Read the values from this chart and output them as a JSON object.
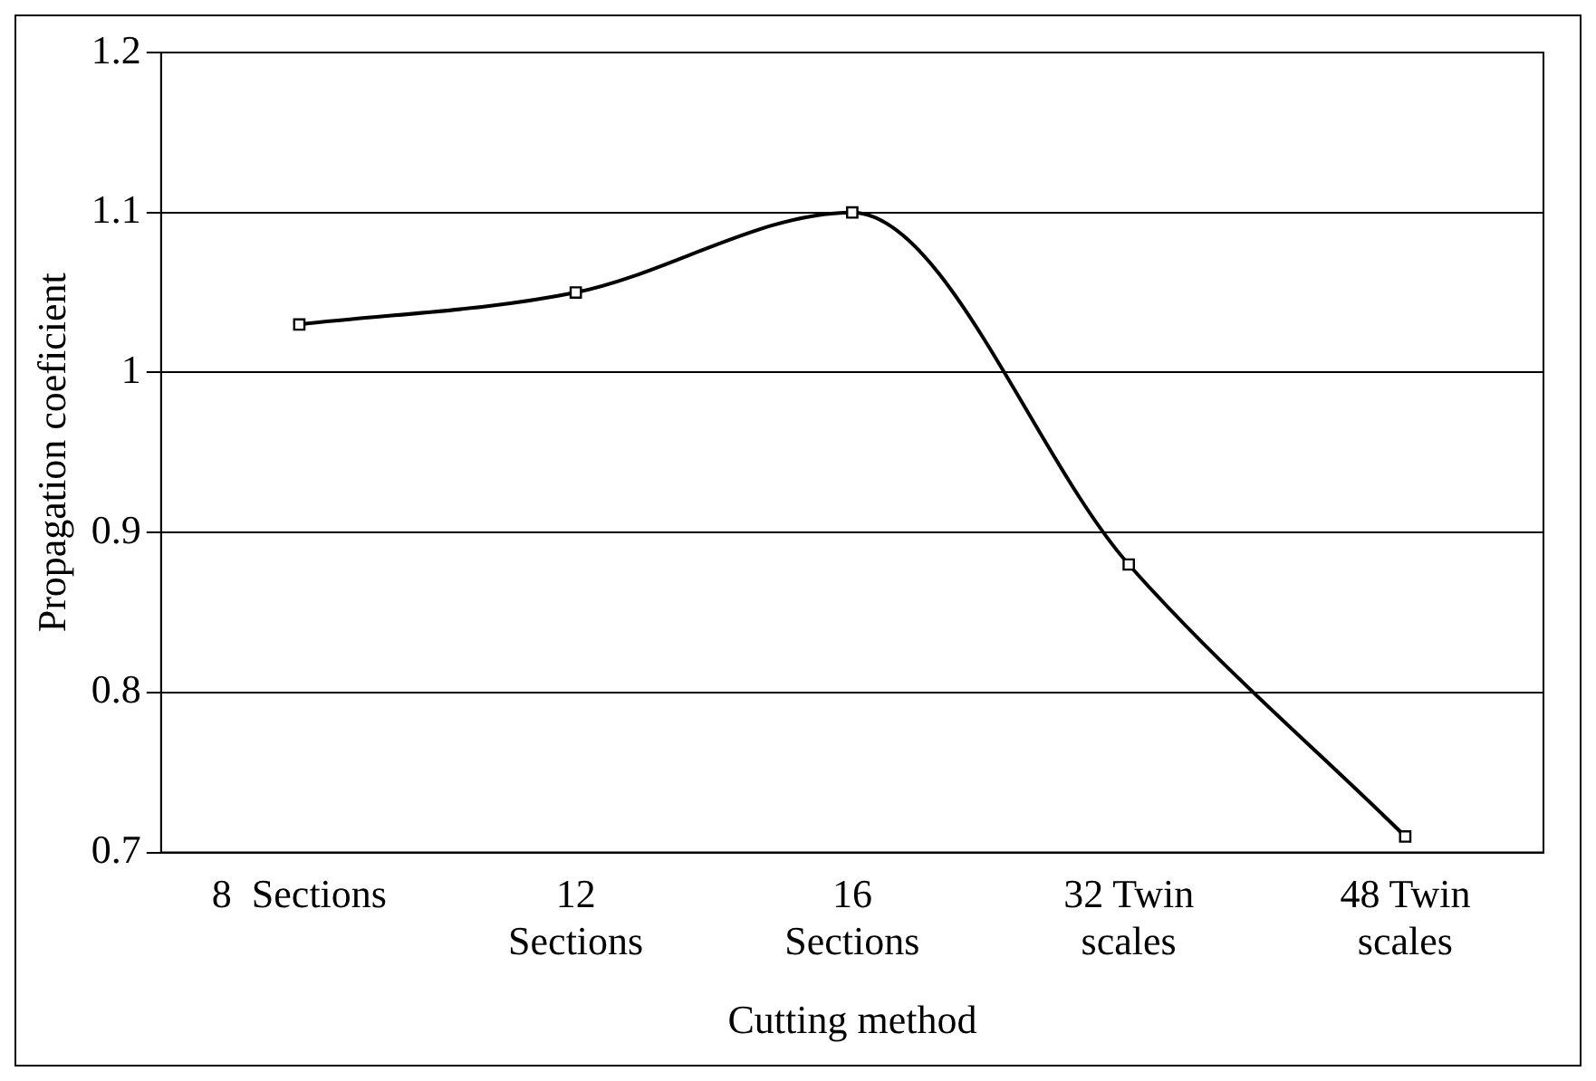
{
  "chart_data": {
    "type": "line",
    "xlabel": "Cutting method",
    "ylabel": "Propagation coeficient",
    "categories": [
      "8  Sections",
      "12\nSections",
      "16\nSections",
      "32 Twin\nscales",
      "48 Twin\nscales"
    ],
    "series": [
      {
        "color": "#000000",
        "values": [
          1.03,
          1.05,
          1.1,
          0.88,
          0.71
        ]
      }
    ],
    "ylim": [
      0.7,
      1.2
    ],
    "yticks": [
      0.7,
      0.8,
      0.9,
      1,
      1.1,
      1.2
    ],
    "grid": "y",
    "legend": false,
    "marker": "square",
    "line_style": "solid"
  }
}
